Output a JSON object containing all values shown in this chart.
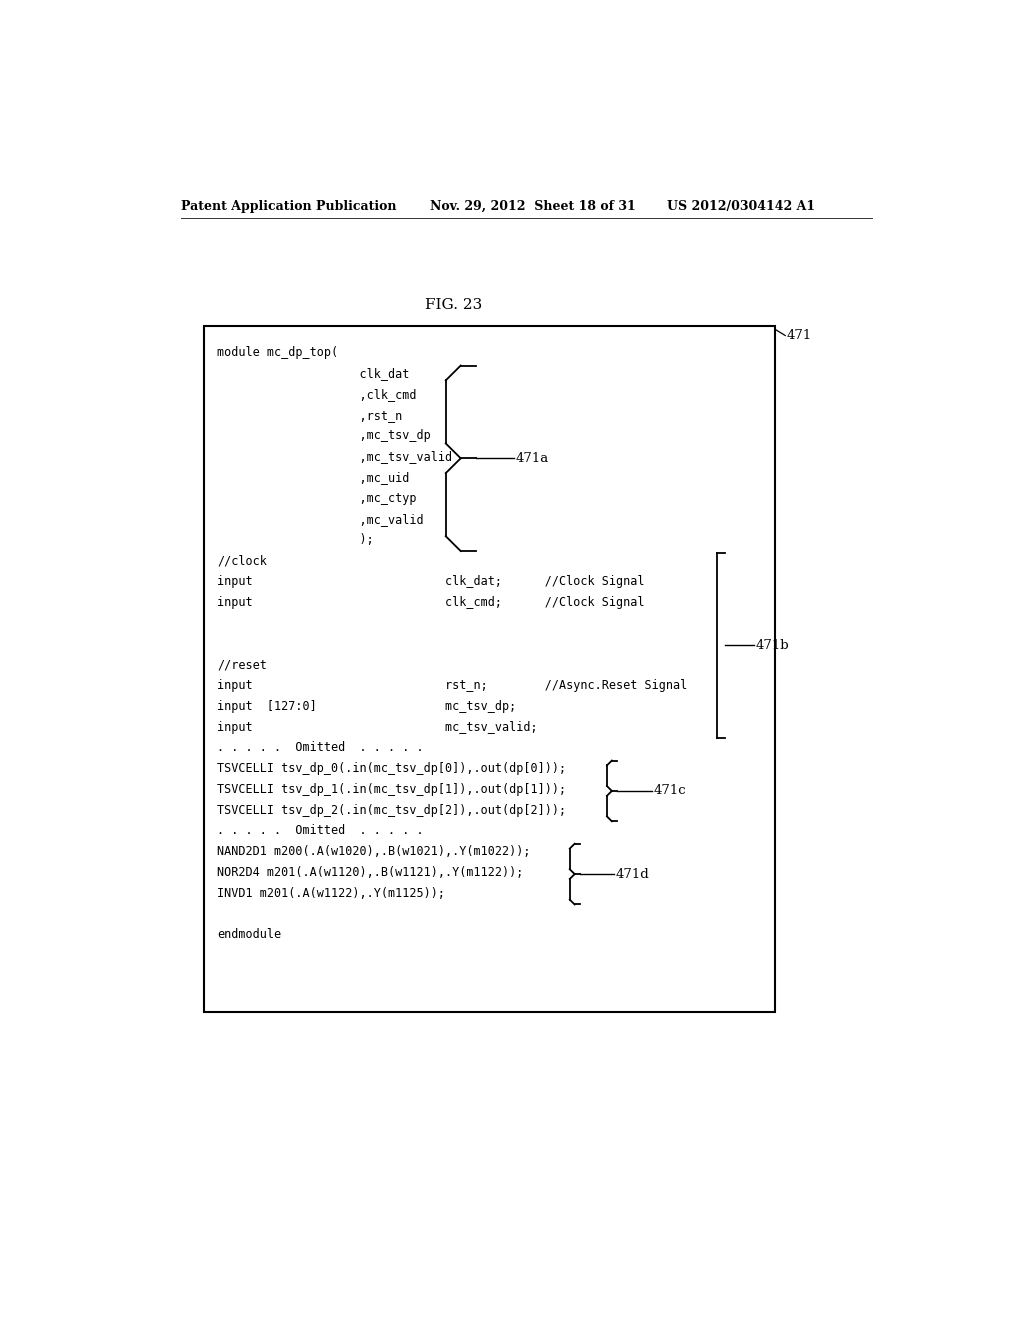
{
  "header_left": "Patent Application Publication",
  "header_mid": "Nov. 29, 2012  Sheet 18 of 31",
  "header_right": "US 2012/0304142 A1",
  "fig_label": "FIG. 23",
  "label_471": "471",
  "label_471a": "471a",
  "label_471b": "471b",
  "label_471c": "471c",
  "label_471d": "471d",
  "code_line_0": "module mc_dp_top(",
  "code_line_1": "                    clk_dat",
  "code_line_2": "                    ,clk_cmd",
  "code_line_3": "                    ,rst_n",
  "code_line_4": "                    ,mc_tsv_dp",
  "code_line_5": "                    ,mc_tsv_valid",
  "code_line_6": "                    ,mc_uid",
  "code_line_7": "                    ,mc_ctyp",
  "code_line_8": "                    ,mc_valid",
  "code_line_9": "                    );",
  "code_line_10": "//clock",
  "code_line_11": "input                           clk_dat;      //Clock Signal",
  "code_line_12": "input                           clk_cmd;      //Clock Signal",
  "code_line_13": "",
  "code_line_14": "",
  "code_line_15": "//reset",
  "code_line_16": "input                           rst_n;        //Async.Reset Signal",
  "code_line_17": "input  [127:0]                  mc_tsv_dp;",
  "code_line_18": "input                           mc_tsv_valid;",
  "code_line_19": ". . . . .  Omitted  . . . . .",
  "code_line_20": "TSVCELLI tsv_dp_0(.in(mc_tsv_dp[0]),.out(dp[0]));",
  "code_line_21": "TSVCELLI tsv_dp_1(.in(mc_tsv_dp[1]),.out(dp[1]));",
  "code_line_22": "TSVCELLI tsv_dp_2(.in(mc_tsv_dp[2]),.out(dp[2]));",
  "code_line_23": ". . . . .  Omitted  . . . . .",
  "code_line_24": "NAND2D1 m200(.A(w1020),.B(w1021),.Y(m1022));",
  "code_line_25": "NOR2D4 m201(.A(w1120),.B(w1121),.Y(m1122));",
  "code_line_26": "INVD1 m201(.A(w1122),.Y(m1125));",
  "code_line_27": "",
  "code_line_28": "endmodule",
  "bg_color": "#ffffff",
  "box_color": "#000000",
  "text_color": "#000000",
  "font_size": 8.5,
  "header_font_size": 9.0
}
